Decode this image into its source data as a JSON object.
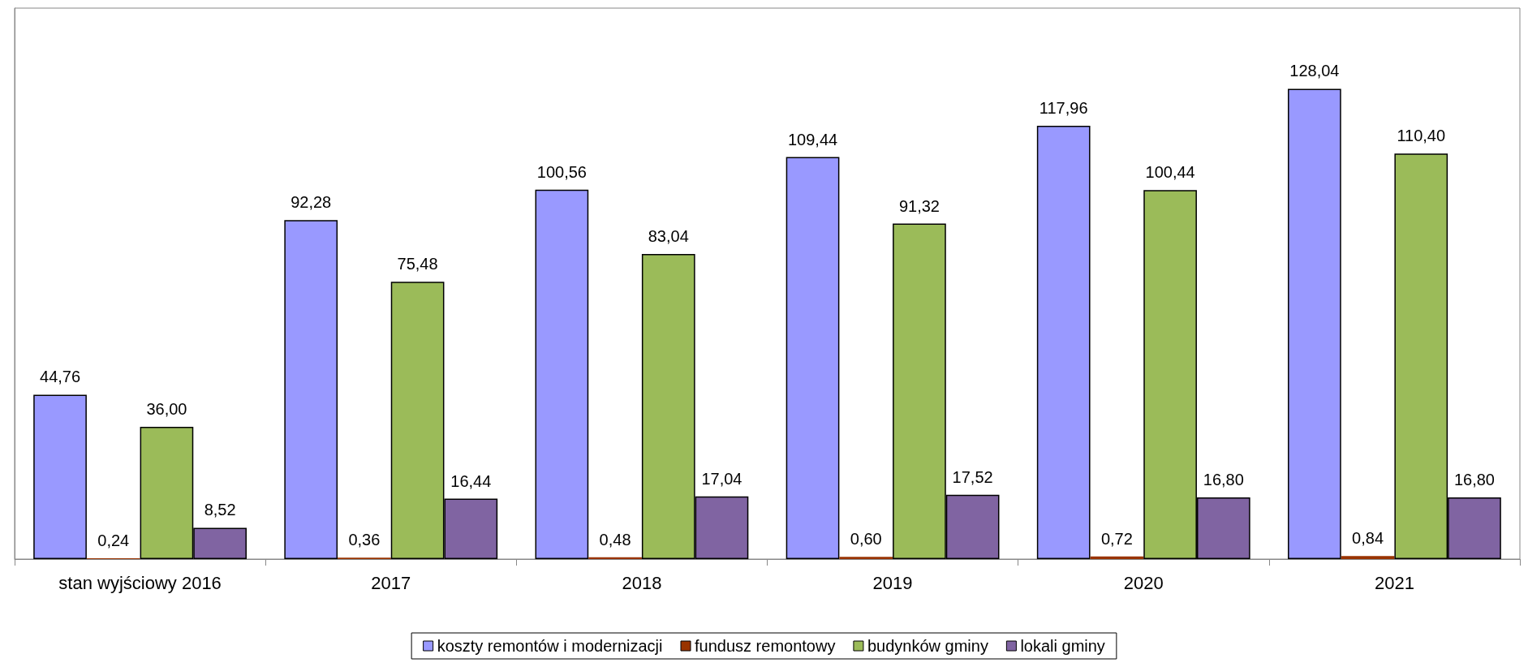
{
  "chart_data": {
    "type": "bar",
    "categories": [
      "stan wyjściowy 2016",
      "2017",
      "2018",
      "2019",
      "2020",
      "2021"
    ],
    "series": [
      {
        "name": "koszty remontów i modernizacji",
        "color": "#9999ff",
        "values": [
          44.76,
          92.28,
          100.56,
          109.44,
          117.96,
          128.04
        ],
        "value_labels": [
          "44,76",
          "92,28",
          "100,56",
          "109,44",
          "117,96",
          "128,04"
        ]
      },
      {
        "name": "fundusz remontowy",
        "color": "#993300",
        "values": [
          0.24,
          0.36,
          0.48,
          0.6,
          0.72,
          0.84
        ],
        "value_labels": [
          "0,24",
          "0,36",
          "0,48",
          "0,60",
          "0,72",
          "0,84"
        ]
      },
      {
        "name": "budynków gminy",
        "color": "#9bbb59",
        "values": [
          36,
          75.48,
          83.04,
          91.32,
          100.44,
          110.4
        ],
        "value_labels": [
          "36,00",
          "75,48",
          "83,04",
          "91,32",
          "100,44",
          "110,40"
        ]
      },
      {
        "name": "lokali gminy",
        "color": "#8064a2",
        "values": [
          8.52,
          16.44,
          17.04,
          17.52,
          16.8,
          16.8
        ],
        "value_labels": [
          "8,52",
          "16,44",
          "17,04",
          "17,52",
          "16,80",
          "16,80"
        ]
      }
    ],
    "legend": "bottom",
    "grid": false
  }
}
